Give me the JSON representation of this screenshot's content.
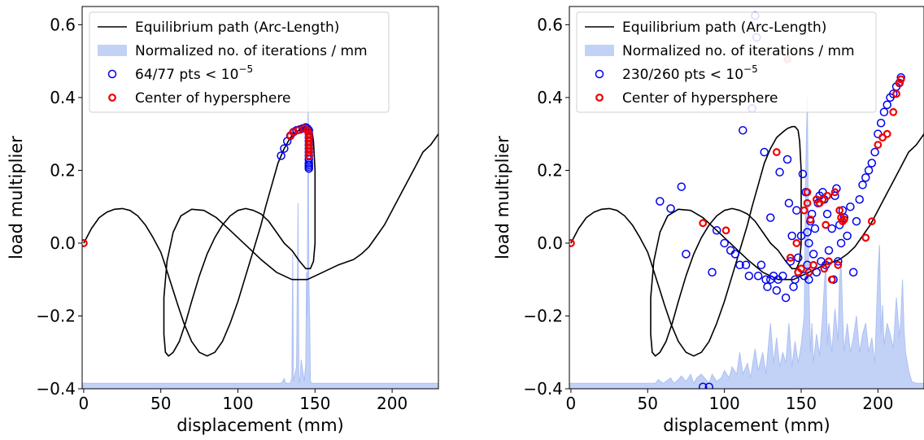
{
  "colors": {
    "path": "#000000",
    "iterations": "#aec1f3",
    "points": "#0000ee",
    "center": "#ee0000"
  },
  "chart_data": [
    {
      "type": "line",
      "xlabel": "displacement (mm)",
      "ylabel": "load multiplier",
      "xlim": [
        -1,
        230
      ],
      "ylim": [
        -0.4,
        0.65
      ],
      "xticks": [
        0,
        50,
        100,
        150,
        200
      ],
      "yticks": [
        -0.4,
        -0.2,
        0.0,
        0.2,
        0.4,
        0.6
      ],
      "xtick_labels": [
        "0",
        "50",
        "100",
        "150",
        "200"
      ],
      "ytick_labels": [
        "−0.4",
        "−0.2",
        "0.0",
        "0.2",
        "0.4",
        "0.6"
      ],
      "legend_position": "top-left",
      "legend": [
        {
          "label": "Equilibrium path (Arc-Length)",
          "kind": "line"
        },
        {
          "label": "Normalized no. of iterations / mm",
          "kind": "patch"
        },
        {
          "label": "64/77 pts < 10",
          "sup": "−5",
          "kind": "marker-blue"
        },
        {
          "label": "Center of hypersphere",
          "kind": "marker-red"
        }
      ],
      "equilibrium_path": {
        "x": [
          0,
          5,
          10,
          15,
          20,
          25,
          30,
          35,
          40,
          45,
          50,
          52,
          55,
          58,
          61,
          65,
          70,
          75,
          80,
          85,
          90,
          95,
          100,
          105,
          110,
          115,
          118,
          122,
          126,
          130,
          134,
          138,
          141,
          144,
          146,
          148,
          149,
          150,
          150,
          150,
          149,
          147,
          144,
          140,
          135,
          130,
          125,
          120,
          115,
          110,
          105,
          100,
          95,
          90,
          85,
          80,
          75,
          70,
          66,
          62,
          58,
          55,
          53,
          52,
          52,
          54,
          58,
          63,
          70,
          78,
          86,
          95,
          105,
          115,
          125,
          135,
          145,
          155,
          165,
          175,
          180,
          185,
          190,
          195,
          200,
          205,
          210,
          215,
          220,
          225,
          230
        ],
        "y": [
          0.0,
          0.04,
          0.07,
          0.085,
          0.093,
          0.095,
          0.09,
          0.075,
          0.05,
          0.015,
          -0.025,
          -0.05,
          -0.09,
          -0.13,
          -0.17,
          -0.22,
          -0.27,
          -0.3,
          -0.31,
          -0.3,
          -0.27,
          -0.22,
          -0.16,
          -0.09,
          -0.02,
          0.05,
          0.1,
          0.16,
          0.22,
          0.26,
          0.29,
          0.305,
          0.315,
          0.32,
          0.32,
          0.31,
          0.28,
          0.2,
          0.1,
          0.0,
          -0.05,
          -0.07,
          -0.07,
          -0.05,
          -0.02,
          0.0,
          0.03,
          0.06,
          0.08,
          0.09,
          0.095,
          0.09,
          0.075,
          0.05,
          0.015,
          -0.03,
          -0.09,
          -0.16,
          -0.22,
          -0.27,
          -0.3,
          -0.31,
          -0.3,
          -0.25,
          -0.15,
          -0.05,
          0.03,
          0.075,
          0.093,
          0.09,
          0.07,
          0.035,
          -0.005,
          -0.045,
          -0.08,
          -0.1,
          -0.1,
          -0.08,
          -0.06,
          -0.045,
          -0.03,
          -0.01,
          0.02,
          0.05,
          0.09,
          0.13,
          0.17,
          0.21,
          0.25,
          0.27,
          0.3
        ]
      },
      "iterations": {
        "x": [
          -1,
          128,
          129,
          130,
          131,
          132,
          134,
          135,
          135.5,
          136,
          136.5,
          137,
          138,
          139,
          139.5,
          140,
          140.5,
          141,
          142,
          143,
          144,
          144.5,
          145,
          145.5,
          146,
          146.5,
          147,
          148,
          150,
          230
        ],
        "y": [
          -0.385,
          -0.385,
          -0.38,
          -0.372,
          -0.385,
          -0.385,
          -0.385,
          -0.37,
          -0.03,
          -0.38,
          -0.37,
          -0.36,
          -0.34,
          0.11,
          -0.37,
          -0.385,
          -0.36,
          -0.32,
          -0.35,
          -0.38,
          -0.33,
          -0.08,
          -0.2,
          0.5,
          -0.1,
          -0.2,
          -0.38,
          -0.385,
          -0.385,
          -0.385
        ]
      },
      "points": {
        "x": [
          128,
          130,
          132,
          134,
          136,
          138,
          140,
          142,
          144,
          145,
          146,
          146,
          146,
          146,
          146,
          146,
          146,
          146,
          146,
          146,
          146,
          146,
          146
        ],
        "y": [
          0.24,
          0.26,
          0.28,
          0.295,
          0.305,
          0.31,
          0.312,
          0.315,
          0.318,
          0.315,
          0.31,
          0.3,
          0.29,
          0.28,
          0.27,
          0.26,
          0.25,
          0.24,
          0.23,
          0.22,
          0.215,
          0.21,
          0.205
        ]
      },
      "centers": {
        "x": [
          0,
          134,
          136,
          139,
          143,
          145,
          146,
          146,
          146,
          146,
          146,
          146,
          146
        ],
        "y": [
          0.0,
          0.295,
          0.305,
          0.31,
          0.315,
          0.31,
          0.3,
          0.29,
          0.28,
          0.27,
          0.26,
          0.25,
          0.24
        ]
      }
    },
    {
      "type": "line",
      "xlabel": "displacement (mm)",
      "ylabel": "load multiplier",
      "xlim": [
        -1,
        230
      ],
      "ylim": [
        -0.4,
        0.65
      ],
      "xticks": [
        0,
        50,
        100,
        150,
        200
      ],
      "yticks": [
        -0.4,
        -0.2,
        0.0,
        0.2,
        0.4,
        0.6
      ],
      "xtick_labels": [
        "0",
        "50",
        "100",
        "150",
        "200"
      ],
      "ytick_labels": [
        "−0.4",
        "−0.2",
        "0.0",
        "0.2",
        "0.4",
        "0.6"
      ],
      "legend_position": "top-left",
      "legend": [
        {
          "label": "Equilibrium path (Arc-Length)",
          "kind": "line"
        },
        {
          "label": "Normalized no. of iterations / mm",
          "kind": "patch"
        },
        {
          "label": "230/260 pts < 10",
          "sup": "−5",
          "kind": "marker-blue"
        },
        {
          "label": "Center of hypersphere",
          "kind": "marker-red"
        }
      ],
      "equilibrium_path": {
        "x": [
          0,
          5,
          10,
          15,
          20,
          25,
          30,
          35,
          40,
          45,
          50,
          52,
          55,
          58,
          61,
          65,
          70,
          75,
          80,
          85,
          90,
          95,
          100,
          105,
          110,
          115,
          118,
          122,
          126,
          130,
          134,
          138,
          141,
          144,
          146,
          148,
          149,
          150,
          150,
          150,
          149,
          147,
          144,
          140,
          135,
          130,
          125,
          120,
          115,
          110,
          105,
          100,
          95,
          90,
          85,
          80,
          75,
          70,
          66,
          62,
          58,
          55,
          53,
          52,
          52,
          54,
          58,
          63,
          70,
          78,
          86,
          95,
          105,
          115,
          125,
          135,
          145,
          155,
          165,
          175,
          180,
          185,
          190,
          195,
          200,
          205,
          210,
          215,
          220,
          225,
          230
        ],
        "y": [
          0.0,
          0.04,
          0.07,
          0.085,
          0.093,
          0.095,
          0.09,
          0.075,
          0.05,
          0.015,
          -0.025,
          -0.05,
          -0.09,
          -0.13,
          -0.17,
          -0.22,
          -0.27,
          -0.3,
          -0.31,
          -0.3,
          -0.27,
          -0.22,
          -0.16,
          -0.09,
          -0.02,
          0.05,
          0.1,
          0.16,
          0.22,
          0.26,
          0.29,
          0.305,
          0.315,
          0.32,
          0.32,
          0.31,
          0.28,
          0.2,
          0.1,
          0.0,
          -0.05,
          -0.07,
          -0.07,
          -0.05,
          -0.02,
          0.0,
          0.03,
          0.06,
          0.08,
          0.09,
          0.095,
          0.09,
          0.075,
          0.05,
          0.015,
          -0.03,
          -0.09,
          -0.16,
          -0.22,
          -0.27,
          -0.3,
          -0.31,
          -0.3,
          -0.25,
          -0.15,
          -0.05,
          0.03,
          0.075,
          0.093,
          0.09,
          0.07,
          0.035,
          -0.005,
          -0.045,
          -0.08,
          -0.1,
          -0.1,
          -0.08,
          -0.06,
          -0.045,
          -0.03,
          -0.01,
          0.02,
          0.05,
          0.09,
          0.13,
          0.17,
          0.21,
          0.25,
          0.27,
          0.3
        ]
      },
      "iterations": {
        "x": [
          -1,
          55,
          57,
          60,
          62,
          65,
          67,
          70,
          72,
          75,
          78,
          80,
          82,
          85,
          88,
          90,
          92,
          95,
          98,
          100,
          103,
          105,
          108,
          110,
          112,
          115,
          117,
          120,
          122,
          125,
          127,
          130,
          132,
          134,
          136,
          138,
          140,
          142,
          144,
          146,
          148,
          150,
          152,
          153,
          154,
          155,
          156,
          157,
          158,
          160,
          162,
          164,
          165,
          166,
          167,
          168,
          170,
          172,
          174,
          175,
          176,
          177,
          178,
          180,
          182,
          184,
          186,
          188,
          190,
          192,
          194,
          196,
          198,
          200,
          201,
          202,
          203,
          204,
          206,
          208,
          210,
          212,
          214,
          215,
          216,
          217,
          218,
          220,
          222,
          225,
          230
        ],
        "y": [
          -0.385,
          -0.385,
          -0.375,
          -0.385,
          -0.38,
          -0.37,
          -0.385,
          -0.375,
          -0.365,
          -0.38,
          -0.36,
          -0.385,
          -0.37,
          -0.36,
          -0.375,
          -0.385,
          -0.36,
          -0.38,
          -0.37,
          -0.35,
          -0.37,
          -0.34,
          -0.36,
          -0.3,
          -0.36,
          -0.33,
          -0.37,
          -0.29,
          -0.35,
          -0.3,
          -0.36,
          -0.22,
          -0.33,
          -0.26,
          -0.34,
          -0.3,
          -0.33,
          -0.22,
          -0.34,
          -0.27,
          -0.33,
          -0.28,
          -0.2,
          0.2,
          0.4,
          -0.1,
          -0.3,
          -0.22,
          -0.33,
          -0.25,
          -0.31,
          -0.2,
          -0.12,
          -0.05,
          -0.28,
          -0.22,
          -0.3,
          -0.18,
          -0.27,
          -0.1,
          -0.05,
          -0.2,
          -0.3,
          -0.22,
          -0.3,
          -0.26,
          -0.2,
          -0.3,
          -0.25,
          -0.22,
          -0.3,
          -0.26,
          -0.33,
          -0.08,
          -0.005,
          -0.25,
          -0.17,
          -0.28,
          -0.22,
          -0.25,
          -0.29,
          -0.15,
          -0.26,
          -0.2,
          -0.1,
          -0.24,
          -0.3,
          -0.35,
          -0.38,
          -0.385,
          -0.385
        ]
      },
      "points": {
        "x": [
          58,
          65,
          72,
          75,
          86,
          90,
          92,
          95,
          100,
          104,
          107,
          110,
          112,
          114,
          116,
          118,
          120,
          121,
          122,
          124,
          126,
          127,
          128,
          130,
          130,
          132,
          134,
          135,
          136,
          138,
          140,
          141,
          142,
          143,
          144,
          145,
          146,
          147,
          148,
          150,
          151,
          152,
          153,
          154,
          154,
          155,
          155,
          156,
          157,
          158,
          159,
          160,
          161,
          162,
          163,
          164,
          165,
          166,
          167,
          168,
          170,
          171,
          172,
          173,
          174,
          175,
          176,
          177,
          178,
          180,
          182,
          184,
          186,
          188,
          190,
          192,
          194,
          196,
          198,
          200,
          202,
          204,
          206,
          208,
          210,
          212,
          214,
          215
        ],
        "y": [
          0.115,
          0.095,
          0.155,
          -0.03,
          -0.395,
          -0.395,
          -0.08,
          0.035,
          0.0,
          -0.02,
          -0.03,
          -0.06,
          0.31,
          -0.06,
          -0.09,
          0.37,
          0.625,
          0.565,
          -0.09,
          -0.06,
          0.25,
          -0.1,
          -0.12,
          0.07,
          -0.1,
          -0.09,
          -0.13,
          -0.1,
          0.195,
          -0.09,
          -0.15,
          0.23,
          0.11,
          -0.05,
          0.02,
          -0.12,
          -0.1,
          0.09,
          -0.04,
          0.02,
          0.19,
          -0.09,
          0.14,
          -0.06,
          0.03,
          0.0,
          -0.1,
          0.06,
          0.08,
          -0.03,
          0.04,
          -0.08,
          0.11,
          0.13,
          -0.05,
          0.14,
          0.12,
          -0.06,
          0.08,
          -0.02,
          0.04,
          -0.1,
          0.13,
          0.15,
          -0.05,
          0.05,
          0.0,
          0.09,
          0.07,
          0.02,
          0.1,
          -0.08,
          0.06,
          0.12,
          0.16,
          0.18,
          0.2,
          0.22,
          0.25,
          0.3,
          0.33,
          0.36,
          0.38,
          0.4,
          0.41,
          0.43,
          0.44,
          0.455
        ]
      },
      "centers": {
        "x": [
          0,
          86,
          101,
          134,
          143,
          147,
          148,
          150,
          152,
          154,
          154,
          155,
          156,
          158,
          160,
          162,
          164,
          165,
          166,
          167,
          168,
          170,
          172,
          174,
          175,
          176,
          177,
          178,
          192,
          196,
          200,
          203,
          206,
          210,
          212,
          214,
          215
        ],
        "y": [
          0.0,
          0.055,
          0.035,
          0.25,
          -0.04,
          0.0,
          -0.08,
          -0.07,
          0.09,
          0.14,
          0.11,
          -0.08,
          0.065,
          -0.06,
          0.12,
          0.11,
          0.12,
          -0.07,
          0.05,
          0.13,
          -0.05,
          -0.1,
          0.14,
          -0.06,
          0.09,
          0.07,
          0.06,
          0.065,
          0.015,
          0.06,
          0.27,
          0.29,
          0.3,
          0.36,
          0.41,
          0.44,
          0.45
        ]
      },
      "faint_centers": {
        "x": [
          141
        ],
        "y": [
          0.505
        ]
      }
    }
  ]
}
